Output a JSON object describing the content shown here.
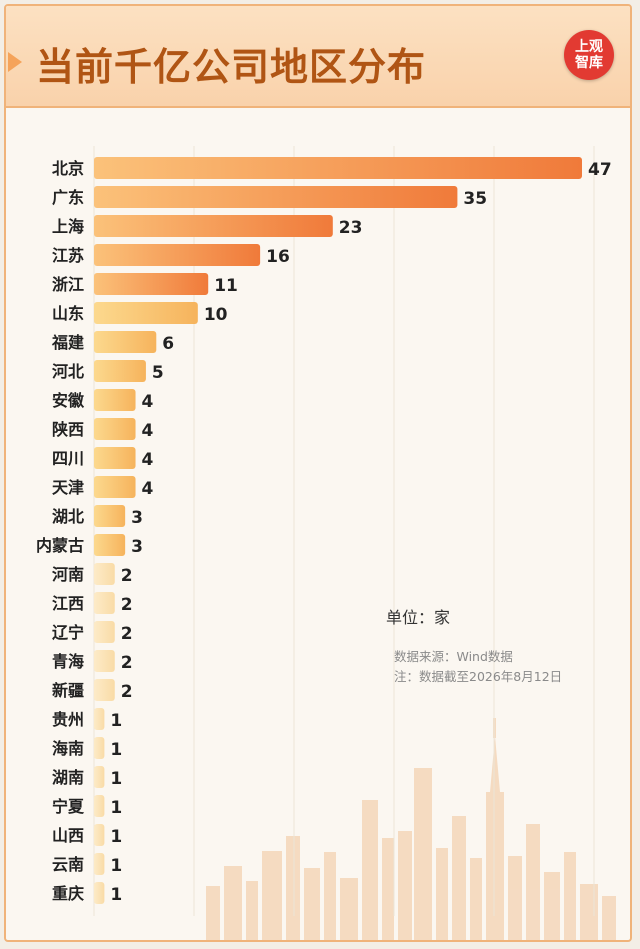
{
  "title": "当前千亿公司地区分布",
  "logo": {
    "line1": "上观",
    "line2": "智库"
  },
  "unit_label": "单位：家",
  "source": "数据来源：Wind数据",
  "note": "注：数据截至2026年8月12日",
  "colors": {
    "accent": "#f08a3a",
    "title": "#b05514",
    "logo_bg": "#e23a32"
  },
  "chart_data": {
    "type": "bar",
    "orientation": "horizontal",
    "title": "当前千亿公司地区分布",
    "unit": "家",
    "categories": [
      "北京",
      "广东",
      "上海",
      "江苏",
      "浙江",
      "山东",
      "福建",
      "河北",
      "安徽",
      "陕西",
      "四川",
      "天津",
      "湖北",
      "内蒙古",
      "河南",
      "江西",
      "辽宁",
      "青海",
      "新疆",
      "贵州",
      "海南",
      "湖南",
      "宁夏",
      "山西",
      "云南",
      "重庆"
    ],
    "values": [
      47,
      35,
      23,
      16,
      11,
      10,
      6,
      5,
      4,
      4,
      4,
      4,
      3,
      3,
      2,
      2,
      2,
      2,
      2,
      1,
      1,
      1,
      1,
      1,
      1,
      1
    ],
    "data_labels": [
      "47",
      "35",
      "23",
      "16",
      "11",
      "10",
      "6",
      "5",
      "4",
      "4",
      "4",
      "4",
      "3",
      "3",
      "2",
      "2",
      "2",
      "2",
      "2",
      "1",
      "1",
      "1",
      "1",
      "1",
      "1",
      "1"
    ],
    "grid": true
  }
}
